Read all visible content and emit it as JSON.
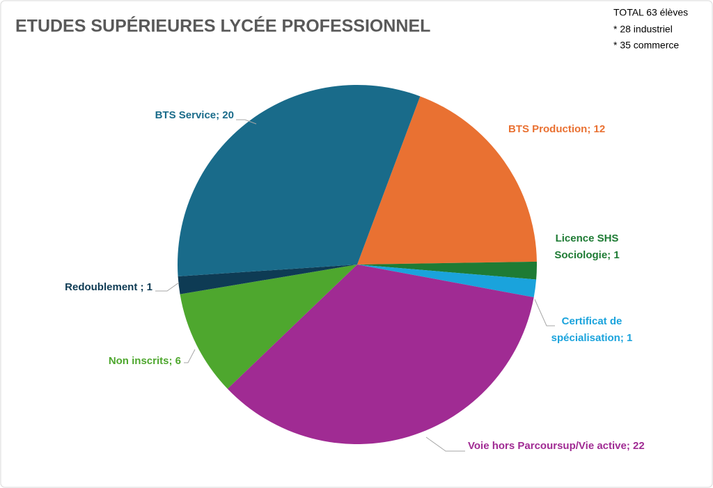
{
  "chart_data": {
    "type": "pie",
    "title": "ETUDES SUPÉRIEURES LYCÉE PROFESSIONNEL",
    "annotations": [
      "TOTAL 63 élèves",
      "* 28  industriel",
      "* 35 commerce"
    ],
    "values": [
      12,
      1,
      1,
      22,
      6,
      1,
      20
    ],
    "value_labels": [
      [
        "BTS Production; 12"
      ],
      [
        "Licence SHS",
        "Sociologie; 1"
      ],
      [
        "Certificat de",
        "spécialisation; 1"
      ],
      [
        "Voie hors Parcoursup/Vie active; 22"
      ],
      [
        "Non inscrits; 6"
      ],
      [
        "Redoublement ; 1"
      ],
      [
        "BTS Service; 20"
      ]
    ],
    "colors": [
      "#E97132",
      "#1E7B34",
      "#1AA3DC",
      "#A02B93",
      "#4EA72E",
      "#0E3B54",
      "#196B8A"
    ]
  }
}
